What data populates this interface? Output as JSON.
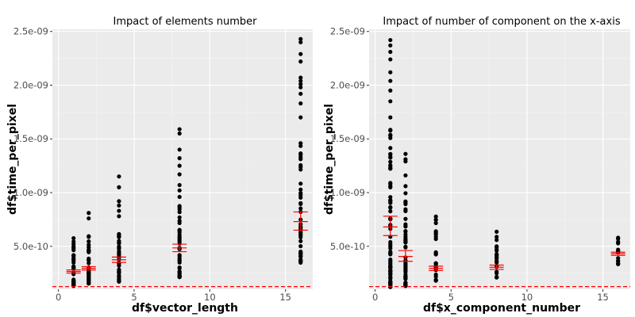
{
  "chart_data": [
    {
      "type": "scatter",
      "title": "Impact of elements number",
      "xlabel": "df$vector_length",
      "ylabel": "df$time_per_pixel",
      "xlim": [
        -0.4,
        16.8
      ],
      "ylim": [
        1e-10,
        2.52e-09
      ],
      "x_ticks": [
        0,
        5,
        10,
        15
      ],
      "x_tick_labels": [
        "0",
        "5",
        "10",
        "15"
      ],
      "y_ticks": [
        5e-10,
        1e-09,
        1.5e-09,
        2e-09,
        2.5e-09
      ],
      "y_tick_labels": [
        "5.0e-10",
        "1.0e-09",
        "1.5e-09",
        "2.0e-09",
        "2.5e-09"
      ],
      "grid": true,
      "reference_line": {
        "y": 1.25e-10,
        "style": "dashed",
        "color": "#ff0000"
      },
      "groups": [
        {
          "x": 1,
          "y_min": 1.3e-10,
          "y_max": 5.9e-10,
          "n": 36,
          "extra": [],
          "mean": 2.65e-10,
          "ci": [
            2.5e-10,
            2.8e-10
          ]
        },
        {
          "x": 2,
          "y_min": 1.5e-10,
          "y_max": 6e-10,
          "n": 36,
          "extra": [
            7.6e-10,
            8.1e-10
          ],
          "mean": 2.95e-10,
          "ci": [
            2.8e-10,
            3.1e-10
          ]
        },
        {
          "x": 4,
          "y_min": 1.7e-10,
          "y_max": 6.8e-10,
          "n": 36,
          "extra": [
            7.8e-10,
            8.3e-10,
            8.8e-10,
            9.2e-10,
            1.05e-09,
            1.15e-09
          ],
          "mean": 3.75e-10,
          "ci": [
            3.5e-10,
            4e-10
          ]
        },
        {
          "x": 8,
          "y_min": 2.1e-10,
          "y_max": 9e-10,
          "n": 38,
          "extra": [
            9.6e-10,
            1.02e-09,
            1.07e-09,
            1.17e-09,
            1.25e-09,
            1.32e-09,
            1.4e-09,
            1.55e-09,
            1.59e-09
          ],
          "mean": 4.85e-10,
          "ci": [
            4.5e-10,
            5.2e-10
          ]
        },
        {
          "x": 16,
          "y_min": 3.4e-10,
          "y_max": 1.6e-09,
          "n": 44,
          "extra": [
            1.7e-09,
            1.83e-09,
            1.92e-09,
            1.98e-09,
            2.01e-09,
            2.04e-09,
            2.07e-09,
            2.22e-09,
            2.29e-09,
            2.4e-09,
            2.43e-09
          ],
          "mean": 7.3e-10,
          "ci": [
            6.5e-10,
            8.2e-10
          ]
        }
      ]
    },
    {
      "type": "scatter",
      "title": "Impact of number of component on the x-axis",
      "xlabel": "df$x_component_number",
      "ylabel": "df$time_per_pixel",
      "xlim": [
        -0.4,
        16.8
      ],
      "ylim": [
        1e-10,
        2.52e-09
      ],
      "x_ticks": [
        0,
        5,
        10,
        15
      ],
      "x_tick_labels": [
        "0",
        "5",
        "10",
        "15"
      ],
      "y_ticks": [
        5e-10,
        1e-09,
        1.5e-09,
        2e-09,
        2.5e-09
      ],
      "y_tick_labels": [
        "5.0e-10",
        "1.0e-09",
        "1.5e-09",
        "2.0e-09",
        "2.5e-09"
      ],
      "grid": true,
      "reference_line": {
        "y": 1.25e-10,
        "style": "dashed",
        "color": "#ff0000"
      },
      "groups": [
        {
          "x": 1,
          "y_min": 1.2e-10,
          "y_max": 1.6e-09,
          "n": 80,
          "extra": [
            1.7e-09,
            1.85e-09,
            1.95e-09,
            2.04e-09,
            2.12e-09,
            2.24e-09,
            2.31e-09,
            2.37e-09,
            2.42e-09
          ],
          "mean": 6.8e-10,
          "ci": [
            6e-10,
            7.8e-10
          ]
        },
        {
          "x": 2,
          "y_min": 1.3e-10,
          "y_max": 1e-09,
          "n": 60,
          "extra": [
            1.06e-09,
            1.16e-09,
            1.29e-09,
            1.31e-09,
            1.36e-09
          ],
          "mean": 4.05e-10,
          "ci": [
            3.6e-10,
            4.6e-10
          ]
        },
        {
          "x": 4,
          "y_min": 1.8e-10,
          "y_max": 7.8e-10,
          "n": 30,
          "extra": [],
          "mean": 2.95e-10,
          "ci": [
            2.75e-10,
            3.15e-10
          ]
        },
        {
          "x": 8,
          "y_min": 2.1e-10,
          "y_max": 6.5e-10,
          "n": 24,
          "extra": [],
          "mean": 3.05e-10,
          "ci": [
            2.85e-10,
            3.25e-10
          ]
        },
        {
          "x": 16,
          "y_min": 3.3e-10,
          "y_max": 6e-10,
          "n": 14,
          "extra": [],
          "mean": 4.3e-10,
          "ci": [
            4.15e-10,
            4.45e-10
          ]
        }
      ]
    }
  ]
}
